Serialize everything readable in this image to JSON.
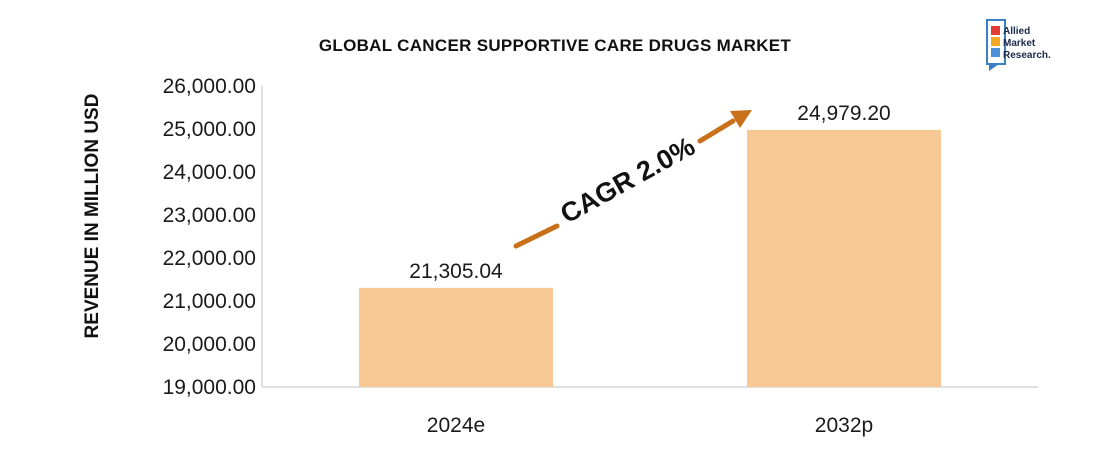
{
  "chart_data": {
    "type": "bar",
    "title": "GLOBAL CANCER SUPPORTIVE CARE DRUGS MARKET",
    "ylabel": "REVENUE IN MILLION USD",
    "xlabel": "",
    "categories": [
      "2024e",
      "2032p"
    ],
    "values": [
      21305.04,
      24979.2
    ],
    "data_labels": [
      "21,305.04",
      "24,979.20"
    ],
    "ylim": [
      19000,
      26000
    ],
    "yticks": [
      19000,
      20000,
      21000,
      22000,
      23000,
      24000,
      25000,
      26000
    ],
    "ytick_labels": [
      "19,000.00",
      "20,000.00",
      "21,000.00",
      "22,000.00",
      "23,000.00",
      "24,000.00",
      "25,000.00",
      "26,000.00"
    ],
    "bar_color": "#f9c995",
    "arrow_color": "#c8701a",
    "annotation": "CAGR 2.0%",
    "grid": false,
    "legend": "none"
  },
  "logo": {
    "lines": [
      "Allied",
      "Market",
      "Research."
    ],
    "colors": [
      "#e53935",
      "#f5a623",
      "#4a90d9"
    ]
  }
}
